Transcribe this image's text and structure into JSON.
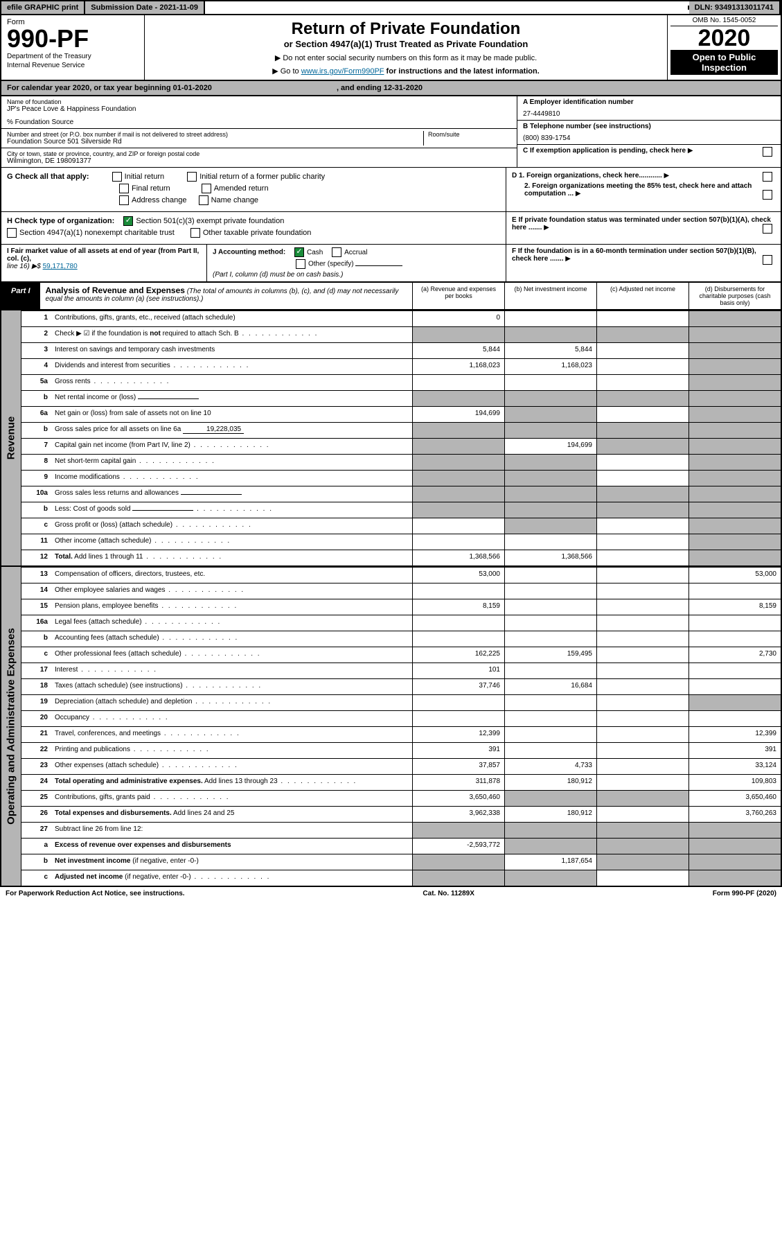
{
  "topbar": {
    "efile": "efile GRAPHIC print",
    "sub_label": "Submission Date - ",
    "sub_date": "2021-11-09",
    "dln_label": "DLN: ",
    "dln": "93491313011741"
  },
  "header": {
    "form_word": "Form",
    "form_num": "990-PF",
    "dept": "Department of the Treasury",
    "irs": "Internal Revenue Service",
    "title": "Return of Private Foundation",
    "subtitle": "or Section 4947(a)(1) Trust Treated as Private Foundation",
    "note1": "▶ Do not enter social security numbers on this form as it may be made public.",
    "note2_pre": "▶ Go to ",
    "note2_link": "www.irs.gov/Form990PF",
    "note2_post": " for instructions and the latest information.",
    "omb": "OMB No. 1545-0052",
    "year": "2020",
    "inspect": "Open to Public Inspection"
  },
  "calendar": {
    "pre": "For calendar year 2020, or tax year beginning ",
    "begin": "01-01-2020",
    "mid": ", and ending ",
    "end": "12-31-2020"
  },
  "info": {
    "name_lbl": "Name of foundation",
    "name": "JP's Peace Love & Happiness Foundation",
    "care": "% Foundation Source",
    "addr_lbl": "Number and street (or P.O. box number if mail is not delivered to street address)",
    "addr": "Foundation Source 501 Silverside Rd",
    "room_lbl": "Room/suite",
    "city_lbl": "City or town, state or province, country, and ZIP or foreign postal code",
    "city": "Wilmington, DE  198091377",
    "a_lbl": "A Employer identification number",
    "a_val": "27-4449810",
    "b_lbl": "B Telephone number (see instructions)",
    "b_val": "(800) 839-1754",
    "c_lbl": "C If exemption application is pending, check here"
  },
  "g": {
    "lbl": "G Check all that apply:",
    "initial": "Initial return",
    "former": "Initial return of a former public charity",
    "final": "Final return",
    "amended": "Amended return",
    "addr": "Address change",
    "name": "Name change"
  },
  "h": {
    "lbl": "H Check type of organization:",
    "c3": "Section 501(c)(3) exempt private foundation",
    "s4947": "Section 4947(a)(1) nonexempt charitable trust",
    "other": "Other taxable private foundation"
  },
  "d": {
    "d1": "D 1. Foreign organizations, check here............",
    "d2": "2. Foreign organizations meeting the 85% test, check here and attach computation ..."
  },
  "e": {
    "lbl": "E  If private foundation status was terminated under section 507(b)(1)(A), check here ......."
  },
  "i": {
    "lbl": "I Fair market value of all assets at end of year (from Part II, col. (c),",
    "line": "line 16) ▶$",
    "val": "59,171,780"
  },
  "j": {
    "lbl": "J Accounting method:",
    "cash": "Cash",
    "accrual": "Accrual",
    "other": "Other (specify)",
    "note": "(Part I, column (d) must be on cash basis.)"
  },
  "f": {
    "lbl": "F  If the foundation is in a 60-month termination under section 507(b)(1)(B), check here ......."
  },
  "part1": {
    "tag": "Part I",
    "title": "Analysis of Revenue and Expenses",
    "note": " (The total of amounts in columns (b), (c), and (d) may not necessarily equal the amounts in column (a) (see instructions).)",
    "ca": "(a)  Revenue and expenses per books",
    "cb": "(b)  Net investment income",
    "cc": "(c)  Adjusted net income",
    "cd": "(d)  Disbursements for charitable purposes (cash basis only)"
  },
  "rev_label": "Revenue",
  "op_label": "Operating and Administrative Expenses",
  "rows": [
    {
      "n": "1",
      "d": "Contributions, gifts, grants, etc., received (attach schedule)",
      "a": "0",
      "cs": false,
      "ds": true
    },
    {
      "n": "2",
      "d": "Check ▶ ☑ if the foundation is <b>not</b> required to attach Sch. B",
      "dots": true,
      "as": true,
      "bs": true,
      "cs": true,
      "ds": true
    },
    {
      "n": "3",
      "d": "Interest on savings and temporary cash investments",
      "a": "5,844",
      "b": "5,844",
      "ds": true
    },
    {
      "n": "4",
      "d": "Dividends and interest from securities",
      "a": "1,168,023",
      "b": "1,168,023",
      "ds": true,
      "dots": true
    },
    {
      "n": "5a",
      "d": "Gross rents",
      "dots": true,
      "ds": true
    },
    {
      "n": "b",
      "d": "Net rental income or (loss)",
      "blank": true,
      "as": true,
      "bs": true,
      "cs": true,
      "ds": true
    },
    {
      "n": "6a",
      "d": "Net gain or (loss) from sale of assets not on line 10",
      "a": "194,699",
      "bs": true,
      "ds": true
    },
    {
      "n": "b",
      "d": "Gross sales price for all assets on line 6a",
      "blank": true,
      "bval": "19,228,035",
      "as": true,
      "bs": true,
      "cs": true,
      "ds": true
    },
    {
      "n": "7",
      "d": "Capital gain net income (from Part IV, line 2)",
      "as": true,
      "b": "194,699",
      "cs": true,
      "ds": true,
      "dots": true
    },
    {
      "n": "8",
      "d": "Net short-term capital gain",
      "as": true,
      "bs": true,
      "ds": true,
      "dots": true
    },
    {
      "n": "9",
      "d": "Income modifications",
      "as": true,
      "bs": true,
      "ds": true,
      "dots": true
    },
    {
      "n": "10a",
      "d": "Gross sales less returns and allowances",
      "blank": true,
      "as": true,
      "bs": true,
      "cs": true,
      "ds": true
    },
    {
      "n": "b",
      "d": "Less: Cost of goods sold",
      "blank": true,
      "as": true,
      "bs": true,
      "cs": true,
      "ds": true,
      "dots": true
    },
    {
      "n": "c",
      "d": "Gross profit or (loss) (attach schedule)",
      "bs": true,
      "ds": true,
      "dots": true
    },
    {
      "n": "11",
      "d": "Other income (attach schedule)",
      "ds": true,
      "dots": true
    },
    {
      "n": "12",
      "d": "<b>Total.</b> Add lines 1 through 11",
      "a": "1,368,566",
      "b": "1,368,566",
      "ds": true,
      "dots": true
    }
  ],
  "op_rows": [
    {
      "n": "13",
      "d": "Compensation of officers, directors, trustees, etc.",
      "a": "53,000",
      "dv": "53,000"
    },
    {
      "n": "14",
      "d": "Other employee salaries and wages",
      "dots": true
    },
    {
      "n": "15",
      "d": "Pension plans, employee benefits",
      "a": "8,159",
      "dv": "8,159",
      "dots": true
    },
    {
      "n": "16a",
      "d": "Legal fees (attach schedule)",
      "dots": true
    },
    {
      "n": "b",
      "d": "Accounting fees (attach schedule)",
      "dots": true
    },
    {
      "n": "c",
      "d": "Other professional fees (attach schedule)",
      "a": "162,225",
      "b": "159,495",
      "dv": "2,730",
      "dots": true
    },
    {
      "n": "17",
      "d": "Interest",
      "a": "101",
      "dots": true
    },
    {
      "n": "18",
      "d": "Taxes (attach schedule) (see instructions)",
      "a": "37,746",
      "b": "16,684",
      "dots": true
    },
    {
      "n": "19",
      "d": "Depreciation (attach schedule) and depletion",
      "ds": true,
      "dots": true
    },
    {
      "n": "20",
      "d": "Occupancy",
      "dots": true
    },
    {
      "n": "21",
      "d": "Travel, conferences, and meetings",
      "a": "12,399",
      "dv": "12,399",
      "dots": true
    },
    {
      "n": "22",
      "d": "Printing and publications",
      "a": "391",
      "dv": "391",
      "dots": true
    },
    {
      "n": "23",
      "d": "Other expenses (attach schedule)",
      "a": "37,857",
      "b": "4,733",
      "dv": "33,124",
      "dots": true
    },
    {
      "n": "24",
      "d": "<b>Total operating and administrative expenses.</b> Add lines 13 through 23",
      "a": "311,878",
      "b": "180,912",
      "dv": "109,803",
      "dots": true
    },
    {
      "n": "25",
      "d": "Contributions, gifts, grants paid",
      "a": "3,650,460",
      "bs": true,
      "cs": true,
      "dv": "3,650,460",
      "dots": true
    },
    {
      "n": "26",
      "d": "<b>Total expenses and disbursements.</b> Add lines 24 and 25",
      "a": "3,962,338",
      "b": "180,912",
      "dv": "3,760,263"
    },
    {
      "n": "27",
      "d": "Subtract line 26 from line 12:",
      "as": true,
      "bs": true,
      "cs": true,
      "ds": true
    },
    {
      "n": "a",
      "d": "<b>Excess of revenue over expenses and disbursements</b>",
      "a": "-2,593,772",
      "bs": true,
      "cs": true,
      "ds": true
    },
    {
      "n": "b",
      "d": "<b>Net investment income</b> (if negative, enter -0-)",
      "as": true,
      "b": "1,187,654",
      "cs": true,
      "ds": true
    },
    {
      "n": "c",
      "d": "<b>Adjusted net income</b> (if negative, enter -0-)",
      "as": true,
      "bs": true,
      "ds": true,
      "dots": true
    }
  ],
  "footer": {
    "left": "For Paperwork Reduction Act Notice, see instructions.",
    "mid": "Cat. No. 11289X",
    "right": "Form 990-PF (2020)"
  }
}
